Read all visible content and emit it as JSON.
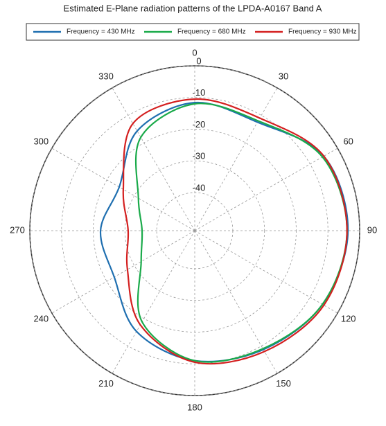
{
  "chart_data": {
    "type": "polar",
    "title": "Estimated E-Plane radiation patterns of the LPDA-A0167 Band A",
    "direction": "clockwise",
    "zero_location": "top",
    "theta": [
      0,
      30,
      60,
      90,
      120,
      150,
      180,
      210,
      240,
      270,
      300,
      330
    ],
    "thetaticks": [
      0,
      30,
      60,
      90,
      120,
      150,
      180,
      210,
      240,
      270,
      300,
      330
    ],
    "rlim": [
      -52,
      0
    ],
    "rticks": [
      0,
      -10,
      -20,
      -30,
      -40
    ],
    "grid": true,
    "series": [
      {
        "name": "Frequency = 430 MHz",
        "color": "#1f6fb0",
        "values": [
          -11.6,
          -12.5,
          -5,
          -3.7,
          -5.5,
          -8.7,
          -11,
          -15.3,
          -22.7,
          -22.3,
          -24.5,
          -15.7
        ]
      },
      {
        "name": "Frequency = 680 MHz",
        "color": "#1aaa4a",
        "values": [
          -12,
          -12,
          -5.5,
          -4,
          -5.5,
          -9,
          -11,
          -18.8,
          -32.5,
          -35.4,
          -31.5,
          -18
        ]
      },
      {
        "name": "Frequency = 930 MHz",
        "color": "#d42020",
        "values": [
          -10.5,
          -11,
          -5,
          -4,
          -5,
          -8,
          -10.5,
          -17.7,
          -27.5,
          -31,
          -26,
          -13
        ]
      }
    ]
  }
}
